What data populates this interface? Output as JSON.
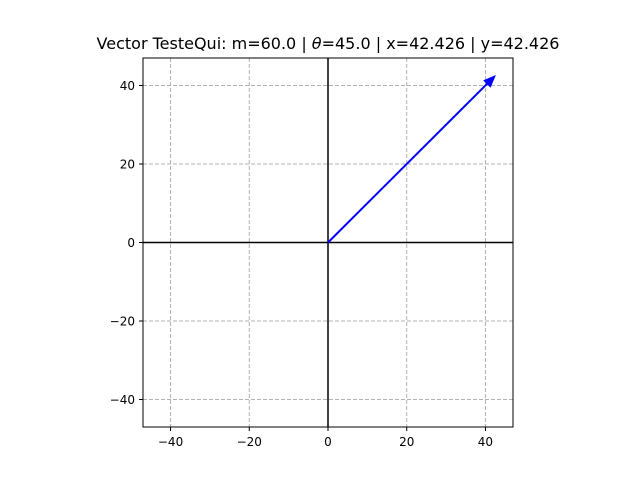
{
  "chart_data": {
    "type": "vector",
    "title": {
      "prefix": "Vector TesteQui: m=60.0 | ",
      "theta_symbol": "θ",
      "suffix": "=45.0 | x=42.426 | y=42.426"
    },
    "xlabel": "",
    "ylabel": "",
    "xlim": [
      -47,
      47
    ],
    "ylim": [
      -47,
      47
    ],
    "xticks": [
      -40,
      -20,
      0,
      20,
      40
    ],
    "yticks": [
      -40,
      -20,
      0,
      20,
      40
    ],
    "xtick_labels": [
      "−40",
      "−20",
      "0",
      "20",
      "40"
    ],
    "ytick_labels": [
      "−40",
      "−20",
      "0",
      "20",
      "40"
    ],
    "grid": true,
    "grid_style": "dashed",
    "axes_lines_at_origin": true,
    "vector": {
      "name": "TesteQui",
      "magnitude": 60.0,
      "theta_deg": 45.0,
      "origin": [
        0,
        0
      ],
      "x": 42.426,
      "y": 42.426,
      "color": "#0000ff"
    },
    "colors": {
      "vector": "#0000ff",
      "axes": "#000000",
      "grid": "#b0b0b0"
    }
  }
}
